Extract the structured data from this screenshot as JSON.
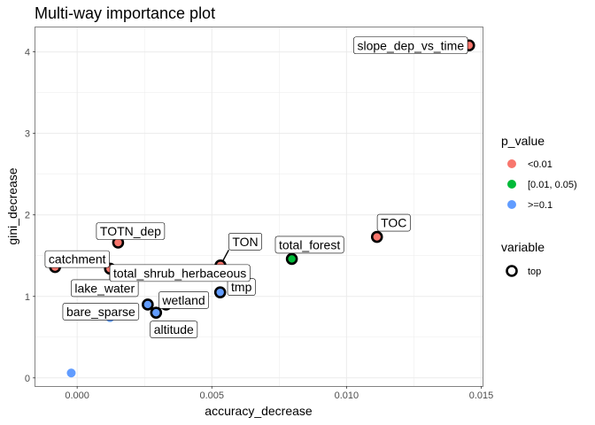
{
  "chart_data": {
    "type": "scatter",
    "title": "Multi-way importance plot",
    "xlabel": "accuracy_decrease",
    "ylabel": "gini_decrease",
    "xlim": [
      -0.00155,
      0.01505
    ],
    "ylim": [
      -0.1,
      4.3
    ],
    "xticks": [
      0.0,
      0.005,
      0.01,
      0.015
    ],
    "xtick_labels": [
      "0.000",
      "0.005",
      "0.010",
      "0.015"
    ],
    "yticks": [
      0,
      1,
      2,
      3,
      4
    ],
    "ytick_labels": [
      "0",
      "1",
      "2",
      "3",
      "4"
    ],
    "grid": true,
    "color_legend": {
      "title": "p_value",
      "entries": [
        {
          "label": "<0.01",
          "color": "#F8766D"
        },
        {
          "label": "[0.01, 0.05)",
          "color": "#00BA38"
        },
        {
          "label": ">=0.1",
          "color": "#619CFF"
        }
      ]
    },
    "shape_legend": {
      "title": "variable",
      "entries": [
        {
          "label": "top"
        }
      ]
    },
    "points": [
      {
        "label": "slope_dep_vs_time",
        "x": 0.01455,
        "y": 4.08,
        "color": "#F8766D",
        "top": true
      },
      {
        "label": "TOC",
        "x": 0.01113,
        "y": 1.73,
        "color": "#F8766D",
        "top": true
      },
      {
        "label": "total_forest",
        "x": 0.00797,
        "y": 1.46,
        "color": "#00BA38",
        "top": true
      },
      {
        "label": "TON",
        "x": 0.00532,
        "y": 1.38,
        "color": "#F8766D",
        "top": true
      },
      {
        "label": "tmp",
        "x": 0.00531,
        "y": 1.05,
        "color": "#619CFF",
        "top": true
      },
      {
        "label": "TOTN_dep",
        "x": 0.00152,
        "y": 1.66,
        "color": "#F8766D",
        "top": true
      },
      {
        "label": "catchment",
        "x": -0.00082,
        "y": 1.36,
        "color": "#F8766D",
        "top": true
      },
      {
        "label": "lake_water",
        "x": 0.00122,
        "y": 1.34,
        "color": "#F8766D",
        "top": true
      },
      {
        "label": "total_shrub_herbaceous",
        "x": 0.00148,
        "y": 1.08,
        "color": "#619CFF",
        "top": true
      },
      {
        "label": "wetland",
        "x": 0.0033,
        "y": 0.9,
        "color": "#619CFF",
        "top": true
      },
      {
        "label": "bare_sparse",
        "x": 0.00262,
        "y": 0.9,
        "color": "#619CFF",
        "top": true
      },
      {
        "label": "altitude",
        "x": 0.00293,
        "y": 0.8,
        "color": "#619CFF",
        "top": true
      },
      {
        "label": "",
        "x": 0.00122,
        "y": 0.74,
        "color": "#619CFF",
        "top": false
      },
      {
        "label": "",
        "x": -0.00022,
        "y": 0.06,
        "color": "#619CFF",
        "top": false
      }
    ]
  }
}
